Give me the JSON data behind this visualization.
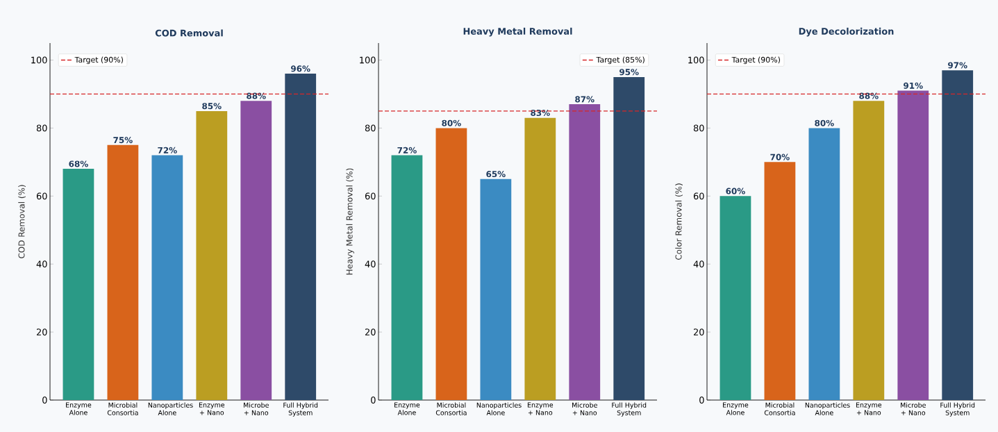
{
  "chart_data": [
    {
      "type": "bar",
      "title": "COD Removal",
      "ylabel": "COD Removal (%)",
      "categories": [
        "Enzyme Alone",
        "Microbial Consortia",
        "Nanoparticles Alone",
        "Enzyme + Nano",
        "Microbe + Nano",
        "Full Hybrid System"
      ],
      "values": [
        68,
        75,
        72,
        85,
        88,
        96
      ],
      "colors": [
        "#2a9a86",
        "#d8641b",
        "#3b8bc2",
        "#bb9e22",
        "#8a4fa2",
        "#2e4a69"
      ],
      "value_labels": [
        "68%",
        "75%",
        "72%",
        "85%",
        "88%",
        "96%"
      ],
      "ylim": [
        0,
        105
      ],
      "yticks": [
        0,
        20,
        40,
        60,
        80,
        100
      ],
      "ref_lines": [
        {
          "axis": "y",
          "value": 90,
          "label": "Target (90%)",
          "color": "#d62728",
          "line_style": "dashed"
        }
      ],
      "legend": "top left"
    },
    {
      "type": "bar",
      "title": "Heavy Metal Removal",
      "ylabel": "Heavy Metal Removal (%)",
      "categories": [
        "Enzyme Alone",
        "Microbial Consortia",
        "Nanoparticles Alone",
        "Enzyme + Nano",
        "Microbe + Nano",
        "Full Hybrid System"
      ],
      "values": [
        72,
        80,
        65,
        83,
        87,
        95
      ],
      "colors": [
        "#2a9a86",
        "#d8641b",
        "#3b8bc2",
        "#bb9e22",
        "#8a4fa2",
        "#2e4a69"
      ],
      "value_labels": [
        "72%",
        "80%",
        "65%",
        "83%",
        "87%",
        "95%"
      ],
      "ylim": [
        0,
        105
      ],
      "yticks": [
        0,
        20,
        40,
        60,
        80,
        100
      ],
      "ref_lines": [
        {
          "axis": "y",
          "value": 85,
          "label": "Target (85%)",
          "color": "#d62728",
          "line_style": "dashed"
        }
      ],
      "legend": "top right"
    },
    {
      "type": "bar",
      "title": "Dye Decolorization",
      "ylabel": "Color Removal (%)",
      "categories": [
        "Enzyme Alone",
        "Microbial Consortia",
        "Nanoparticles Alone",
        "Enzyme + Nano",
        "Microbe + Nano",
        "Full Hybrid System"
      ],
      "values": [
        60,
        70,
        80,
        88,
        91,
        97
      ],
      "colors": [
        "#2a9a86",
        "#d8641b",
        "#3b8bc2",
        "#bb9e22",
        "#8a4fa2",
        "#2e4a69"
      ],
      "value_labels": [
        "60%",
        "70%",
        "80%",
        "88%",
        "91%",
        "97%"
      ],
      "ylim": [
        0,
        105
      ],
      "yticks": [
        0,
        20,
        40,
        60,
        80,
        100
      ],
      "ref_lines": [
        {
          "axis": "y",
          "value": 90,
          "label": "Target (90%)",
          "color": "#d62728",
          "line_style": "dashed"
        }
      ],
      "legend": "top left"
    }
  ]
}
